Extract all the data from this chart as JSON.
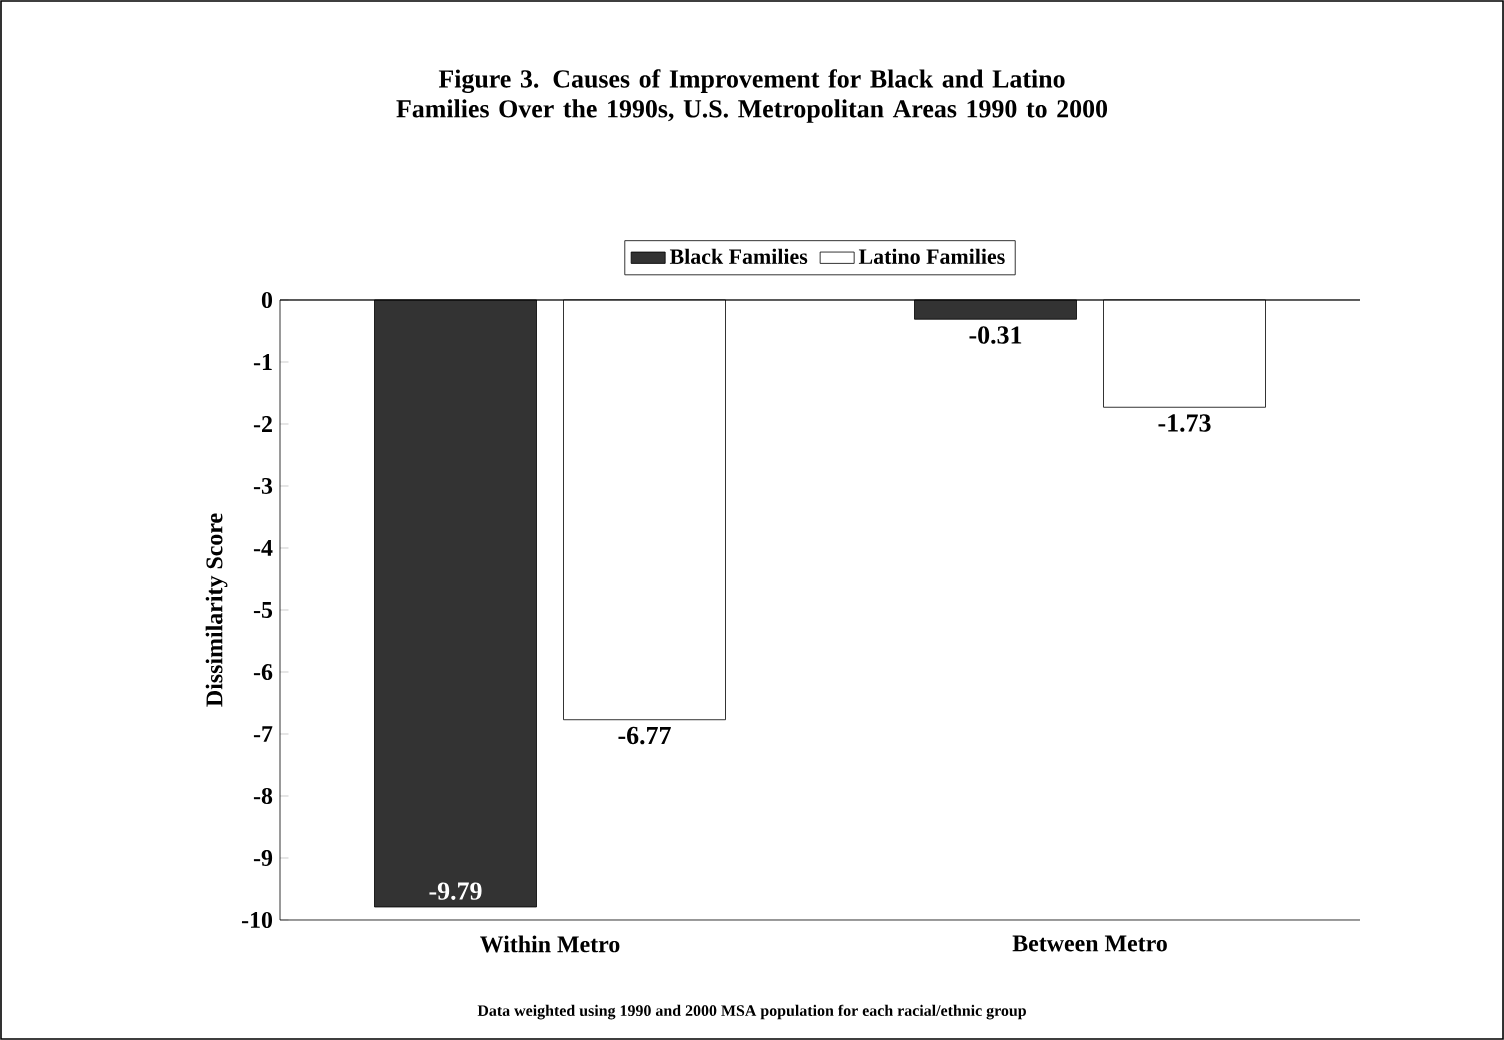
{
  "chart_data": {
    "type": "bar",
    "title": "Figure 3. Causes of Improvement for Black and Latino Families Over the 1990s, U.S. Metropolitan Areas 1990 to 2000",
    "ylabel": "Dissimilarity Score",
    "categories": [
      "Within Metro",
      "Between Metro"
    ],
    "series": [
      {
        "name": "Black Families",
        "color": "#333333",
        "values": [
          -9.79,
          -0.31
        ]
      },
      {
        "name": "Latino Families",
        "color": "#ffffff",
        "values": [
          -6.77,
          -1.73
        ]
      }
    ],
    "ylim": [
      -10,
      0
    ],
    "yticks": [
      0,
      -1,
      -2,
      -3,
      -4,
      -5,
      -6,
      -7,
      -8,
      -9,
      -10
    ],
    "data_labels": true,
    "legend": "top",
    "grid": false,
    "annotations": [
      "Data weighted using 1990 and 2000 MSA population for each racial/ethnic group"
    ]
  }
}
